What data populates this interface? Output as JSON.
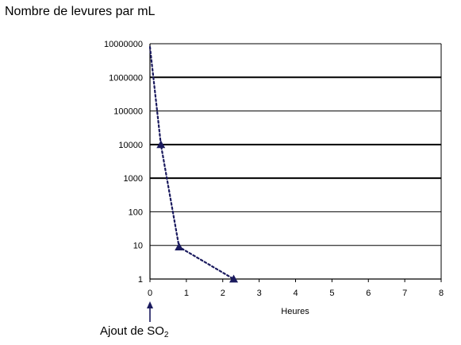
{
  "chart_data": {
    "type": "line",
    "y_title": "Nombre de levures par mL",
    "x_title": "Heures",
    "y_scale": "log",
    "ylim": [
      1,
      10000000
    ],
    "xlim": [
      0,
      8
    ],
    "x_ticks": [
      "0",
      "1",
      "2",
      "3",
      "4",
      "5",
      "6",
      "7",
      "8"
    ],
    "y_ticks": [
      "1",
      "10",
      "100",
      "1000",
      "10000",
      "100000",
      "1000000",
      "10000000"
    ],
    "series": [
      {
        "x": [
          0,
          0.3,
          0.8,
          2.3
        ],
        "y": [
          8000000,
          10000,
          9,
          1
        ],
        "marker": "triangle",
        "line_style": "dotted",
        "color": "#1a1a5e"
      }
    ],
    "annotation": {
      "text_before_sub": "Ajout de SO",
      "sub": "2",
      "arrow_at_x": 0
    },
    "grid": "horizontal"
  }
}
